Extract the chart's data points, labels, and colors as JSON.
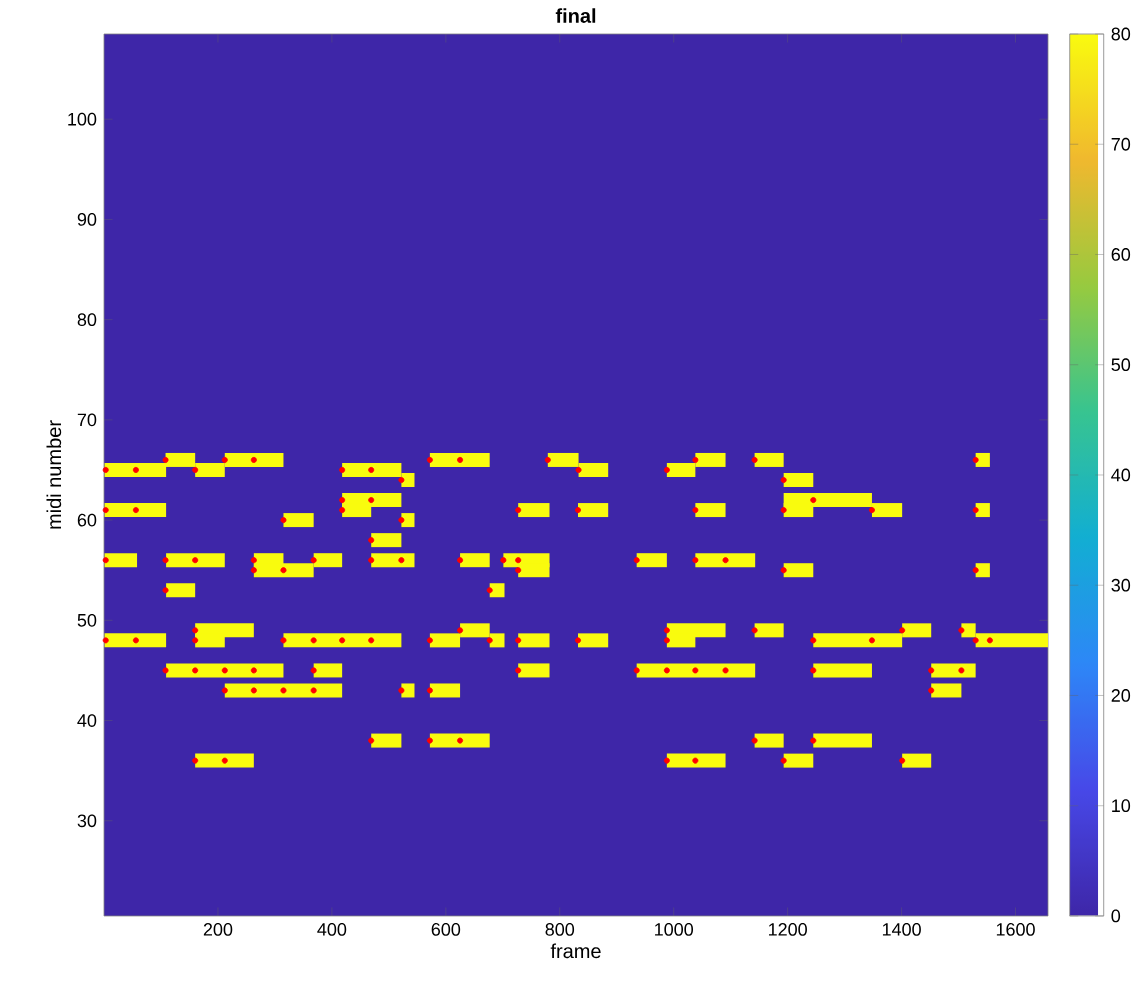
{
  "chart_data": {
    "type": "line",
    "title": "final",
    "xlabel": "frame",
    "ylabel": "midi number",
    "xlim": [
      0,
      1657
    ],
    "ylim": [
      20.5,
      108.5
    ],
    "xticks": [
      200,
      400,
      600,
      800,
      1000,
      1200,
      1400,
      1600
    ],
    "yticks": [
      30,
      40,
      50,
      60,
      70,
      80,
      90,
      100
    ],
    "clim": [
      0,
      80
    ],
    "cticks": [
      0,
      10,
      20,
      30,
      40,
      50,
      60,
      70,
      80
    ],
    "series": [
      {
        "color": "#f9fb0e",
        "x": [
          108,
          160
        ],
        "values": [
          66,
          66
        ]
      },
      {
        "color": "#f9fb0e",
        "x": [
          212,
          315
        ],
        "values": [
          66,
          66
        ]
      },
      {
        "color": "#f9fb0e",
        "x": [
          572,
          677
        ],
        "values": [
          66,
          66
        ]
      },
      {
        "color": "#f9fb0e",
        "x": [
          779,
          833
        ],
        "values": [
          66,
          66
        ]
      },
      {
        "color": "#f9fb0e",
        "x": [
          1038,
          1091
        ],
        "values": [
          66,
          66
        ]
      },
      {
        "color": "#f9fb0e",
        "x": [
          1142,
          1193
        ],
        "values": [
          66,
          66
        ]
      },
      {
        "color": "#f9fb0e",
        "x": [
          1530,
          1555
        ],
        "values": [
          66,
          66
        ]
      },
      {
        "color": "#f9fb0e",
        "x": [
          1,
          109
        ],
        "values": [
          65,
          65
        ]
      },
      {
        "color": "#f9fb0e",
        "x": [
          160,
          212
        ],
        "values": [
          65,
          65
        ]
      },
      {
        "color": "#f9fb0e",
        "x": [
          418,
          522
        ],
        "values": [
          65,
          65
        ]
      },
      {
        "color": "#f9fb0e",
        "x": [
          833,
          885
        ],
        "values": [
          65,
          65
        ]
      },
      {
        "color": "#f9fb0e",
        "x": [
          988,
          1038
        ],
        "values": [
          65,
          65
        ]
      },
      {
        "color": "#f9fb0e",
        "x": [
          522,
          545
        ],
        "values": [
          64,
          64
        ]
      },
      {
        "color": "#f9fb0e",
        "x": [
          1193,
          1245
        ],
        "values": [
          64,
          64
        ]
      },
      {
        "color": "#f9fb0e",
        "x": [
          418,
          522
        ],
        "values": [
          62,
          62
        ]
      },
      {
        "color": "#f9fb0e",
        "x": [
          1193,
          1348
        ],
        "values": [
          62,
          62
        ]
      },
      {
        "color": "#f9fb0e",
        "x": [
          1,
          109
        ],
        "values": [
          61,
          61
        ]
      },
      {
        "color": "#f9fb0e",
        "x": [
          418,
          469
        ],
        "values": [
          61,
          61
        ]
      },
      {
        "color": "#f9fb0e",
        "x": [
          727,
          782
        ],
        "values": [
          61,
          61
        ]
      },
      {
        "color": "#f9fb0e",
        "x": [
          832,
          885
        ],
        "values": [
          61,
          61
        ]
      },
      {
        "color": "#f9fb0e",
        "x": [
          1038,
          1091
        ],
        "values": [
          61,
          61
        ]
      },
      {
        "color": "#f9fb0e",
        "x": [
          1193,
          1245
        ],
        "values": [
          61,
          61
        ]
      },
      {
        "color": "#f9fb0e",
        "x": [
          1348,
          1401
        ],
        "values": [
          61,
          61
        ]
      },
      {
        "color": "#f9fb0e",
        "x": [
          1530,
          1555
        ],
        "values": [
          61,
          61
        ]
      },
      {
        "color": "#f9fb0e",
        "x": [
          315,
          368
        ],
        "values": [
          60,
          60
        ]
      },
      {
        "color": "#f9fb0e",
        "x": [
          522,
          545
        ],
        "values": [
          60,
          60
        ]
      },
      {
        "color": "#f9fb0e",
        "x": [
          469,
          522
        ],
        "values": [
          58,
          58
        ]
      },
      {
        "color": "#f9fb0e",
        "x": [
          1,
          58
        ],
        "values": [
          56,
          56
        ]
      },
      {
        "color": "#f9fb0e",
        "x": [
          109,
          212
        ],
        "values": [
          56,
          56
        ]
      },
      {
        "color": "#f9fb0e",
        "x": [
          263,
          315
        ],
        "values": [
          56,
          56
        ]
      },
      {
        "color": "#f9fb0e",
        "x": [
          368,
          418
        ],
        "values": [
          56,
          56
        ]
      },
      {
        "color": "#f9fb0e",
        "x": [
          469,
          545
        ],
        "values": [
          56,
          56
        ]
      },
      {
        "color": "#f9fb0e",
        "x": [
          625,
          677
        ],
        "values": [
          56,
          56
        ]
      },
      {
        "color": "#f9fb0e",
        "x": [
          701,
          782
        ],
        "values": [
          56,
          56
        ]
      },
      {
        "color": "#f9fb0e",
        "x": [
          935,
          988
        ],
        "values": [
          56,
          56
        ]
      },
      {
        "color": "#f9fb0e",
        "x": [
          1038,
          1143
        ],
        "values": [
          56,
          56
        ]
      },
      {
        "color": "#f9fb0e",
        "x": [
          263,
          368
        ],
        "values": [
          55,
          55
        ]
      },
      {
        "color": "#f9fb0e",
        "x": [
          727,
          782
        ],
        "values": [
          55,
          55
        ]
      },
      {
        "color": "#f9fb0e",
        "x": [
          1193,
          1245
        ],
        "values": [
          55,
          55
        ]
      },
      {
        "color": "#f9fb0e",
        "x": [
          1530,
          1555
        ],
        "values": [
          55,
          55
        ]
      },
      {
        "color": "#f9fb0e",
        "x": [
          109,
          160
        ],
        "values": [
          53,
          53
        ]
      },
      {
        "color": "#f9fb0e",
        "x": [
          677,
          703
        ],
        "values": [
          53,
          53
        ]
      },
      {
        "color": "#f9fb0e",
        "x": [
          160,
          263
        ],
        "values": [
          49,
          49
        ]
      },
      {
        "color": "#f9fb0e",
        "x": [
          625,
          677
        ],
        "values": [
          49,
          49
        ]
      },
      {
        "color": "#f9fb0e",
        "x": [
          988,
          1091
        ],
        "values": [
          49,
          49
        ]
      },
      {
        "color": "#f9fb0e",
        "x": [
          1142,
          1193
        ],
        "values": [
          49,
          49
        ]
      },
      {
        "color": "#f9fb0e",
        "x": [
          1401,
          1452
        ],
        "values": [
          49,
          49
        ]
      },
      {
        "color": "#f9fb0e",
        "x": [
          1505,
          1530
        ],
        "values": [
          49,
          49
        ]
      },
      {
        "color": "#f9fb0e",
        "x": [
          1,
          109
        ],
        "values": [
          48,
          48
        ]
      },
      {
        "color": "#f9fb0e",
        "x": [
          160,
          212
        ],
        "values": [
          48,
          48
        ]
      },
      {
        "color": "#f9fb0e",
        "x": [
          315,
          522
        ],
        "values": [
          48,
          48
        ]
      },
      {
        "color": "#f9fb0e",
        "x": [
          572,
          625
        ],
        "values": [
          48,
          48
        ]
      },
      {
        "color": "#f9fb0e",
        "x": [
          677,
          703
        ],
        "values": [
          48,
          48
        ]
      },
      {
        "color": "#f9fb0e",
        "x": [
          727,
          782
        ],
        "values": [
          48,
          48
        ]
      },
      {
        "color": "#f9fb0e",
        "x": [
          832,
          885
        ],
        "values": [
          48,
          48
        ]
      },
      {
        "color": "#f9fb0e",
        "x": [
          988,
          1038
        ],
        "values": [
          48,
          48
        ]
      },
      {
        "color": "#f9fb0e",
        "x": [
          1245,
          1401
        ],
        "values": [
          48,
          48
        ]
      },
      {
        "color": "#f9fb0e",
        "x": [
          1530,
          1657
        ],
        "values": [
          48,
          48
        ]
      },
      {
        "color": "#f9fb0e",
        "x": [
          109,
          315
        ],
        "values": [
          45,
          45
        ]
      },
      {
        "color": "#f9fb0e",
        "x": [
          368,
          418
        ],
        "values": [
          45,
          45
        ]
      },
      {
        "color": "#f9fb0e",
        "x": [
          727,
          782
        ],
        "values": [
          45,
          45
        ]
      },
      {
        "color": "#f9fb0e",
        "x": [
          935,
          1143
        ],
        "values": [
          45,
          45
        ]
      },
      {
        "color": "#f9fb0e",
        "x": [
          1245,
          1348
        ],
        "values": [
          45,
          45
        ]
      },
      {
        "color": "#f9fb0e",
        "x": [
          1452,
          1530
        ],
        "values": [
          45,
          45
        ]
      },
      {
        "color": "#f9fb0e",
        "x": [
          212,
          418
        ],
        "values": [
          43,
          43
        ]
      },
      {
        "color": "#f9fb0e",
        "x": [
          522,
          545
        ],
        "values": [
          43,
          43
        ]
      },
      {
        "color": "#f9fb0e",
        "x": [
          572,
          625
        ],
        "values": [
          43,
          43
        ]
      },
      {
        "color": "#f9fb0e",
        "x": [
          1452,
          1505
        ],
        "values": [
          43,
          43
        ]
      },
      {
        "color": "#f9fb0e",
        "x": [
          469,
          522
        ],
        "values": [
          38,
          38
        ]
      },
      {
        "color": "#f9fb0e",
        "x": [
          572,
          677
        ],
        "values": [
          38,
          38
        ]
      },
      {
        "color": "#f9fb0e",
        "x": [
          1142,
          1193
        ],
        "values": [
          38,
          38
        ]
      },
      {
        "color": "#f9fb0e",
        "x": [
          1245,
          1348
        ],
        "values": [
          38,
          38
        ]
      },
      {
        "color": "#f9fb0e",
        "x": [
          160,
          263
        ],
        "values": [
          36,
          36
        ]
      },
      {
        "color": "#f9fb0e",
        "x": [
          988,
          1091
        ],
        "values": [
          36,
          36
        ]
      },
      {
        "color": "#f9fb0e",
        "x": [
          1193,
          1245
        ],
        "values": [
          36,
          36
        ]
      },
      {
        "color": "#f9fb0e",
        "x": [
          1401,
          1452
        ],
        "values": [
          36,
          36
        ]
      },
      {
        "type": "scatter",
        "color": "#ff0000",
        "x": [
          108,
          212,
          263,
          572,
          625,
          779,
          1038,
          1142,
          1530,
          3,
          56,
          160,
          418,
          469,
          833,
          988,
          522,
          1193,
          418,
          469,
          1245,
          3,
          56,
          418,
          727,
          832,
          1038,
          1193,
          1348,
          1530,
          315,
          522,
          469,
          3,
          108,
          160,
          263,
          368,
          469,
          522,
          625,
          701,
          727,
          935,
          1038,
          1091,
          263,
          315,
          727,
          1193,
          1530,
          108,
          677,
          160,
          625,
          988,
          1142,
          1401,
          1505,
          3,
          56,
          160,
          315,
          368,
          418,
          469,
          572,
          677,
          727,
          832,
          988,
          1245,
          1348,
          1530,
          1555,
          108,
          160,
          212,
          263,
          368,
          727,
          935,
          988,
          1038,
          1091,
          1245,
          1452,
          1505,
          212,
          263,
          315,
          368,
          522,
          572,
          1452,
          469,
          572,
          625,
          1142,
          1245,
          160,
          212,
          988,
          1038,
          1193,
          1401
        ],
        "values": [
          66,
          66,
          66,
          66,
          66,
          66,
          66,
          66,
          66,
          65,
          65,
          65,
          65,
          65,
          65,
          65,
          64,
          64,
          62,
          62,
          62,
          61,
          61,
          61,
          61,
          61,
          61,
          61,
          61,
          61,
          60,
          60,
          58,
          56,
          56,
          56,
          56,
          56,
          56,
          56,
          56,
          56,
          56,
          56,
          56,
          56,
          55,
          55,
          55,
          55,
          55,
          53,
          53,
          49,
          49,
          49,
          49,
          49,
          49,
          48,
          48,
          48,
          48,
          48,
          48,
          48,
          48,
          48,
          48,
          48,
          48,
          48,
          48,
          48,
          48,
          45,
          45,
          45,
          45,
          45,
          45,
          45,
          45,
          45,
          45,
          45,
          45,
          45,
          43,
          43,
          43,
          43,
          43,
          43,
          43,
          38,
          38,
          38,
          38,
          38,
          36,
          36,
          36,
          36,
          36,
          36
        ]
      }
    ]
  }
}
